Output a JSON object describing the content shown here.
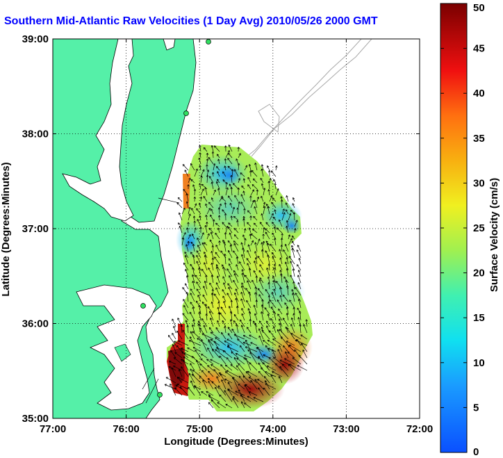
{
  "chart_data": {
    "type": "heatmap",
    "title": "Southern Mid-Atlantic Raw Velocities (1 Day Avg) 2010/05/26 2000 GMT",
    "xlabel": "Longitude (Degrees:Minutes)",
    "ylabel": "Latitude (Degrees:Minutes)",
    "x_ticks": [
      {
        "value": -77,
        "label": "77:00"
      },
      {
        "value": -76,
        "label": "76:00"
      },
      {
        "value": -75,
        "label": "75:00"
      },
      {
        "value": -74,
        "label": "74:00"
      },
      {
        "value": -73,
        "label": "73:00"
      },
      {
        "value": -72,
        "label": "72:00"
      }
    ],
    "y_ticks": [
      {
        "value": 35,
        "label": "35:00"
      },
      {
        "value": 36,
        "label": "36:00"
      },
      {
        "value": 37,
        "label": "37:00"
      },
      {
        "value": 38,
        "label": "38:00"
      },
      {
        "value": 39,
        "label": "39:00"
      }
    ],
    "xlim": [
      -77,
      -72
    ],
    "ylim": [
      35,
      39
    ],
    "grid": true,
    "colorbar": {
      "label": "Surface Velocity (cm/s)",
      "min": 0,
      "max": 50,
      "ticks": [
        0,
        5,
        10,
        15,
        20,
        25,
        30,
        35,
        40,
        45,
        50
      ],
      "colormap": "jet"
    },
    "velocity_field_estimates": [
      {
        "lon": -74.9,
        "lat": 37.55,
        "speed": 10
      },
      {
        "lon": -74.6,
        "lat": 37.45,
        "speed": 8
      },
      {
        "lon": -74.2,
        "lat": 37.2,
        "speed": 14
      },
      {
        "lon": -73.8,
        "lat": 37.0,
        "speed": 8
      },
      {
        "lon": -75.0,
        "lat": 37.0,
        "speed": 10
      },
      {
        "lon": -74.5,
        "lat": 36.7,
        "speed": 22
      },
      {
        "lon": -74.0,
        "lat": 36.6,
        "speed": 20
      },
      {
        "lon": -74.9,
        "lat": 36.2,
        "speed": 24
      },
      {
        "lon": -74.4,
        "lat": 36.0,
        "speed": 25
      },
      {
        "lon": -74.3,
        "lat": 35.7,
        "speed": 8
      },
      {
        "lon": -73.8,
        "lat": 35.6,
        "speed": 38
      },
      {
        "lon": -74.2,
        "lat": 35.3,
        "speed": 48
      },
      {
        "lon": -75.2,
        "lat": 35.5,
        "speed": 45
      },
      {
        "lon": -75.3,
        "lat": 36.0,
        "speed": 44
      }
    ]
  }
}
